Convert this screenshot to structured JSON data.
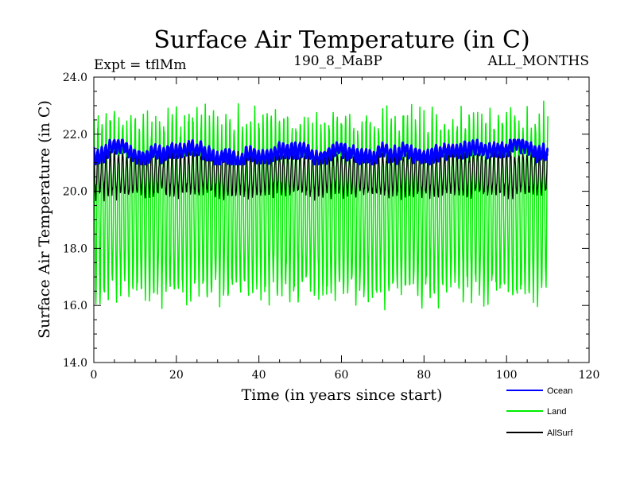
{
  "chart_data": {
    "type": "line",
    "title": "Surface Air Temperature (in C)",
    "expt_label": "Expt = tflMm",
    "subtitle_center": "190_8_MaBP",
    "subtitle_right": "ALL_MONTHS",
    "xlabel": "Time (in years since start)",
    "ylabel": "Surface Air Temperature (in C)",
    "xlim": [
      0,
      120
    ],
    "ylim": [
      14.0,
      24.0
    ],
    "x_ticks": [
      0,
      20,
      40,
      60,
      80,
      100,
      120
    ],
    "x_tick_labels": [
      "0",
      "20",
      "40",
      "60",
      "80",
      "100",
      "120"
    ],
    "y_ticks": [
      14,
      16,
      18,
      20,
      22,
      24
    ],
    "y_tick_labels": [
      "14.0",
      "16.0",
      "18.0",
      "20.0",
      "22.0",
      "24.0"
    ],
    "x_end": 110,
    "samples_per_year": 12,
    "series": [
      {
        "name": "Ocean",
        "color": "#0000ff",
        "line_width": 3,
        "mean": 21.35,
        "amplitude": 0.22,
        "mean_min": 21.15,
        "mean_max": 21.6
      },
      {
        "name": "Land",
        "color": "#00ee00",
        "line_width": 1.5,
        "mean": 19.5,
        "amplitude": 3.0,
        "max": 23.6,
        "min": 15.6
      },
      {
        "name": "AllSurf",
        "color": "#000000",
        "line_width": 1.2,
        "mean": 20.6,
        "amplitude": 0.7,
        "min": 19.4,
        "max": 21.4
      }
    ],
    "legend": [
      {
        "label": "Ocean",
        "color": "#0000ff"
      },
      {
        "label": "Land",
        "color": "#00ee00"
      },
      {
        "label": "AllSurf",
        "color": "#000000"
      }
    ]
  }
}
